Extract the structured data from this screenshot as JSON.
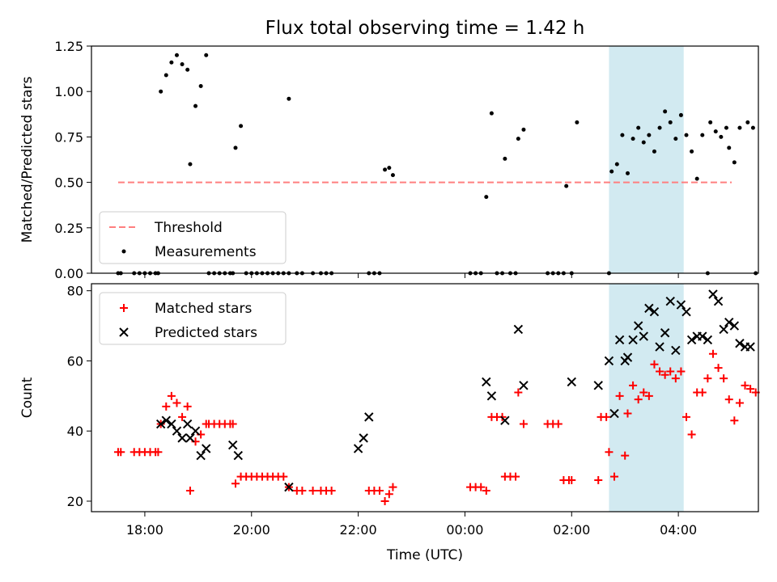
{
  "title": "Flux total observing time = 1.42 h",
  "chart_data": [
    {
      "type": "scatter",
      "panel": "top",
      "ylabel": "Matched/Predicted stars",
      "ylim": [
        0,
        1.25
      ],
      "yticks": [
        "0.00",
        "0.25",
        "0.50",
        "0.75",
        "1.00",
        "1.25"
      ],
      "x_unit": "hours since 00:00 UTC (negative = previous day)",
      "xlim": [
        -7.0,
        5.5
      ],
      "threshold": {
        "name": "Threshold",
        "value": 0.5,
        "x_range": [
          -6.5,
          5.0
        ],
        "color": "#ff7f7f"
      },
      "highlight": {
        "x_range": [
          2.7,
          4.1
        ],
        "color": "#add8e6"
      },
      "legend": {
        "placement": "lower-left",
        "entries": [
          "Threshold",
          "Measurements"
        ]
      },
      "series": [
        {
          "name": "Measurements",
          "color": "#000000",
          "points": [
            [
              -6.5,
              0
            ],
            [
              -6.45,
              0
            ],
            [
              -6.2,
              0
            ],
            [
              -6.1,
              0
            ],
            [
              -6.0,
              0
            ],
            [
              -5.9,
              0
            ],
            [
              -5.8,
              0
            ],
            [
              -5.75,
              0
            ],
            [
              -5.7,
              1.0
            ],
            [
              -5.6,
              1.09
            ],
            [
              -5.5,
              1.16
            ],
            [
              -5.4,
              1.2
            ],
            [
              -5.3,
              1.15
            ],
            [
              -5.2,
              1.12
            ],
            [
              -5.15,
              0.6
            ],
            [
              -5.05,
              0.92
            ],
            [
              -4.95,
              1.03
            ],
            [
              -4.85,
              1.2
            ],
            [
              -4.8,
              0
            ],
            [
              -4.7,
              0
            ],
            [
              -4.6,
              0
            ],
            [
              -4.5,
              0
            ],
            [
              -4.4,
              0
            ],
            [
              -4.35,
              0
            ],
            [
              -4.3,
              0.69
            ],
            [
              -4.2,
              0.81
            ],
            [
              -4.1,
              0
            ],
            [
              -4.0,
              0
            ],
            [
              -3.9,
              0
            ],
            [
              -3.8,
              0
            ],
            [
              -3.7,
              0
            ],
            [
              -3.6,
              0
            ],
            [
              -3.5,
              0
            ],
            [
              -3.4,
              0
            ],
            [
              -3.3,
              0
            ],
            [
              -3.3,
              0.96
            ],
            [
              -3.15,
              0
            ],
            [
              -3.05,
              0
            ],
            [
              -2.85,
              0
            ],
            [
              -2.7,
              0
            ],
            [
              -2.6,
              0
            ],
            [
              -2.5,
              0
            ],
            [
              -1.8,
              0
            ],
            [
              -1.7,
              0
            ],
            [
              -1.6,
              0
            ],
            [
              -1.5,
              0.57
            ],
            [
              -1.42,
              0.58
            ],
            [
              -1.35,
              0.54
            ],
            [
              0.1,
              0
            ],
            [
              0.2,
              0
            ],
            [
              0.3,
              0
            ],
            [
              0.4,
              0.42
            ],
            [
              0.5,
              0.88
            ],
            [
              0.6,
              0
            ],
            [
              0.7,
              0
            ],
            [
              0.75,
              0.63
            ],
            [
              0.85,
              0
            ],
            [
              0.95,
              0
            ],
            [
              1.0,
              0.74
            ],
            [
              1.1,
              0.79
            ],
            [
              1.55,
              0
            ],
            [
              1.65,
              0
            ],
            [
              1.75,
              0
            ],
            [
              1.85,
              0
            ],
            [
              1.9,
              0.48
            ],
            [
              2.0,
              0
            ],
            [
              2.1,
              0.83
            ],
            [
              2.7,
              0
            ],
            [
              2.75,
              0.56
            ],
            [
              2.85,
              0.6
            ],
            [
              2.95,
              0.76
            ],
            [
              3.05,
              0.55
            ],
            [
              3.15,
              0.74
            ],
            [
              3.25,
              0.8
            ],
            [
              3.35,
              0.72
            ],
            [
              3.45,
              0.76
            ],
            [
              3.55,
              0.67
            ],
            [
              3.65,
              0.8
            ],
            [
              3.75,
              0.89
            ],
            [
              3.85,
              0.83
            ],
            [
              3.95,
              0.74
            ],
            [
              4.05,
              0.87
            ],
            [
              4.15,
              0.76
            ],
            [
              4.25,
              0.67
            ],
            [
              4.35,
              0.52
            ],
            [
              4.45,
              0.76
            ],
            [
              4.55,
              0
            ],
            [
              4.6,
              0.83
            ],
            [
              4.7,
              0.78
            ],
            [
              4.8,
              0.75
            ],
            [
              4.9,
              0.8
            ],
            [
              4.95,
              0.69
            ],
            [
              5.05,
              0.61
            ],
            [
              5.15,
              0.8
            ],
            [
              5.3,
              0.83
            ],
            [
              5.4,
              0.8
            ],
            [
              5.45,
              0
            ]
          ]
        }
      ]
    },
    {
      "type": "scatter",
      "panel": "bottom",
      "xlabel": "Time (UTC)",
      "ylabel": "Count",
      "ylim": [
        17,
        82
      ],
      "yticks": [
        "20",
        "40",
        "60",
        "80"
      ],
      "x_unit": "hours since 00:00 UTC (negative = previous day)",
      "xlim": [
        -7.0,
        5.5
      ],
      "xticks": [
        {
          "value": -6,
          "label": "18:00"
        },
        {
          "value": -4,
          "label": "20:00"
        },
        {
          "value": -2,
          "label": "22:00"
        },
        {
          "value": 0,
          "label": "00:00"
        },
        {
          "value": 2,
          "label": "02:00"
        },
        {
          "value": 4,
          "label": "04:00"
        }
      ],
      "highlight": {
        "x_range": [
          2.7,
          4.1
        ],
        "color": "#add8e6"
      },
      "legend": {
        "placement": "upper-left",
        "entries": [
          "Matched stars",
          "Predicted stars"
        ]
      },
      "series": [
        {
          "name": "Matched stars",
          "marker": "plus",
          "color": "#ff0000",
          "points": [
            [
              -6.5,
              34
            ],
            [
              -6.45,
              34
            ],
            [
              -6.2,
              34
            ],
            [
              -6.1,
              34
            ],
            [
              -6.0,
              34
            ],
            [
              -5.9,
              34
            ],
            [
              -5.8,
              34
            ],
            [
              -5.75,
              34
            ],
            [
              -5.7,
              42
            ],
            [
              -5.6,
              47
            ],
            [
              -5.5,
              50
            ],
            [
              -5.4,
              48
            ],
            [
              -5.3,
              44
            ],
            [
              -5.2,
              47
            ],
            [
              -5.15,
              23
            ],
            [
              -5.05,
              37
            ],
            [
              -4.95,
              39
            ],
            [
              -4.85,
              42
            ],
            [
              -4.8,
              42
            ],
            [
              -4.7,
              42
            ],
            [
              -4.6,
              42
            ],
            [
              -4.5,
              42
            ],
            [
              -4.4,
              42
            ],
            [
              -4.35,
              42
            ],
            [
              -4.3,
              25
            ],
            [
              -4.2,
              27
            ],
            [
              -4.1,
              27
            ],
            [
              -4.0,
              27
            ],
            [
              -3.9,
              27
            ],
            [
              -3.8,
              27
            ],
            [
              -3.7,
              27
            ],
            [
              -3.6,
              27
            ],
            [
              -3.5,
              27
            ],
            [
              -3.4,
              27
            ],
            [
              -3.3,
              24
            ],
            [
              -3.15,
              23
            ],
            [
              -3.05,
              23
            ],
            [
              -2.85,
              23
            ],
            [
              -2.7,
              23
            ],
            [
              -2.6,
              23
            ],
            [
              -2.5,
              23
            ],
            [
              -1.8,
              23
            ],
            [
              -1.7,
              23
            ],
            [
              -1.6,
              23
            ],
            [
              -1.5,
              20
            ],
            [
              -1.42,
              22
            ],
            [
              -1.35,
              24
            ],
            [
              0.1,
              24
            ],
            [
              0.2,
              24
            ],
            [
              0.3,
              24
            ],
            [
              0.4,
              23
            ],
            [
              0.5,
              44
            ],
            [
              0.6,
              44
            ],
            [
              0.7,
              44
            ],
            [
              0.75,
              27
            ],
            [
              0.85,
              27
            ],
            [
              0.95,
              27
            ],
            [
              1.0,
              51
            ],
            [
              1.1,
              42
            ],
            [
              1.55,
              42
            ],
            [
              1.65,
              42
            ],
            [
              1.75,
              42
            ],
            [
              1.85,
              26
            ],
            [
              1.95,
              26
            ],
            [
              2.0,
              26
            ],
            [
              2.5,
              26
            ],
            [
              2.55,
              44
            ],
            [
              2.65,
              44
            ],
            [
              2.7,
              34
            ],
            [
              2.8,
              27
            ],
            [
              2.9,
              50
            ],
            [
              3.0,
              33
            ],
            [
              3.05,
              45
            ],
            [
              3.15,
              53
            ],
            [
              3.25,
              49
            ],
            [
              3.35,
              51
            ],
            [
              3.45,
              50
            ],
            [
              3.55,
              59
            ],
            [
              3.65,
              57
            ],
            [
              3.75,
              56
            ],
            [
              3.85,
              57
            ],
            [
              3.95,
              55
            ],
            [
              4.05,
              57
            ],
            [
              4.15,
              44
            ],
            [
              4.25,
              39
            ],
            [
              4.35,
              51
            ],
            [
              4.45,
              51
            ],
            [
              4.55,
              55
            ],
            [
              4.65,
              62
            ],
            [
              4.75,
              58
            ],
            [
              4.85,
              55
            ],
            [
              4.95,
              49
            ],
            [
              5.05,
              43
            ],
            [
              5.15,
              48
            ],
            [
              5.25,
              53
            ],
            [
              5.35,
              52
            ],
            [
              5.45,
              51
            ]
          ]
        },
        {
          "name": "Predicted stars",
          "marker": "x",
          "color": "#000000",
          "points": [
            [
              -5.7,
              42
            ],
            [
              -5.6,
              43
            ],
            [
              -5.5,
              42
            ],
            [
              -5.4,
              40
            ],
            [
              -5.3,
              38
            ],
            [
              -5.2,
              42
            ],
            [
              -5.15,
              38
            ],
            [
              -5.05,
              40
            ],
            [
              -4.95,
              33
            ],
            [
              -4.85,
              35
            ],
            [
              -4.35,
              36
            ],
            [
              -4.25,
              33
            ],
            [
              -3.3,
              24
            ],
            [
              -2.0,
              35
            ],
            [
              -1.9,
              38
            ],
            [
              -1.8,
              44
            ],
            [
              0.4,
              54
            ],
            [
              0.5,
              50
            ],
            [
              0.75,
              43
            ],
            [
              1.0,
              69
            ],
            [
              1.1,
              53
            ],
            [
              2.0,
              54
            ],
            [
              2.5,
              53
            ],
            [
              2.7,
              60
            ],
            [
              2.8,
              45
            ],
            [
              2.9,
              66
            ],
            [
              3.0,
              60
            ],
            [
              3.05,
              61
            ],
            [
              3.15,
              66
            ],
            [
              3.25,
              70
            ],
            [
              3.35,
              67
            ],
            [
              3.45,
              75
            ],
            [
              3.55,
              74
            ],
            [
              3.65,
              64
            ],
            [
              3.75,
              68
            ],
            [
              3.85,
              77
            ],
            [
              3.95,
              63
            ],
            [
              4.05,
              76
            ],
            [
              4.15,
              74
            ],
            [
              4.25,
              66
            ],
            [
              4.35,
              67
            ],
            [
              4.45,
              67
            ],
            [
              4.55,
              66
            ],
            [
              4.65,
              79
            ],
            [
              4.75,
              77
            ],
            [
              4.85,
              69
            ],
            [
              4.95,
              71
            ],
            [
              5.05,
              70
            ],
            [
              5.15,
              65
            ],
            [
              5.25,
              64
            ],
            [
              5.35,
              64
            ]
          ]
        }
      ]
    }
  ]
}
